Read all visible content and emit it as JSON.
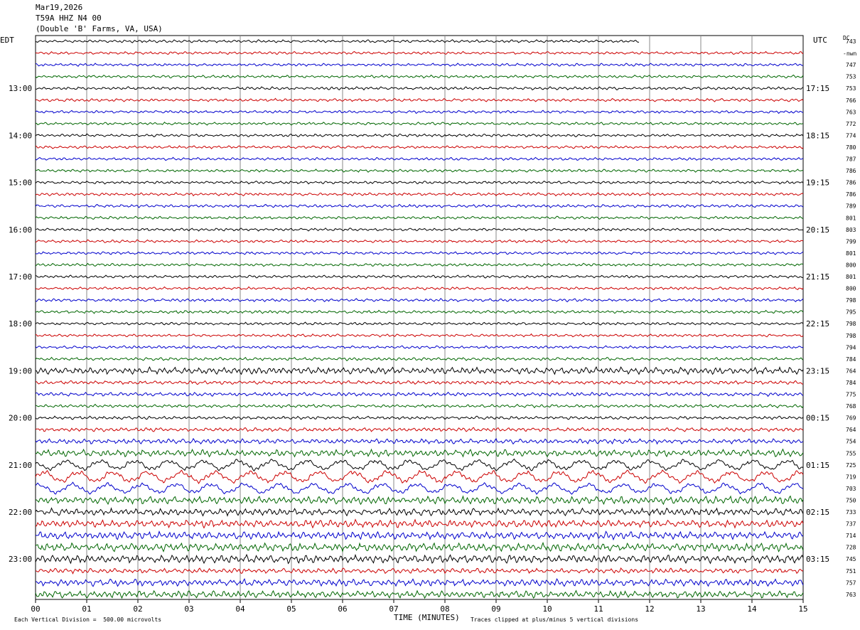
{
  "header": {
    "date": "Mar19,2026",
    "station": "T59A HHZ N4 00",
    "location": "(Double 'B' Farms, VA, USA)"
  },
  "labels": {
    "left_zone": "EDT",
    "right_zone": "UTC",
    "dc_header": "DC",
    "dc_sub": "-nwn",
    "xlabel": "TIME (MINUTES)",
    "scale_note": "Each Vertical Division =  500.00 microvolts",
    "clip_note": "Traces clipped at plus/minus 5 vertical divisions"
  },
  "chart_data": {
    "type": "line",
    "xlabel": "TIME (MINUTES)",
    "xlim": [
      0,
      15
    ],
    "x_ticks": [
      "00",
      "01",
      "02",
      "03",
      "04",
      "05",
      "06",
      "07",
      "08",
      "09",
      "10",
      "11",
      "12",
      "13",
      "14",
      "15"
    ],
    "trace_count": 48,
    "trace_colors": [
      "#000000",
      "#cc0000",
      "#0000cc",
      "#006600"
    ],
    "first_trace_end_minute": 11.8,
    "left_time_labels": [
      {
        "trace": 4,
        "label": "13:00"
      },
      {
        "trace": 8,
        "label": "14:00"
      },
      {
        "trace": 12,
        "label": "15:00"
      },
      {
        "trace": 16,
        "label": "16:00"
      },
      {
        "trace": 20,
        "label": "17:00"
      },
      {
        "trace": 24,
        "label": "18:00"
      },
      {
        "trace": 28,
        "label": "19:00"
      },
      {
        "trace": 32,
        "label": "20:00"
      },
      {
        "trace": 36,
        "label": "21:00"
      },
      {
        "trace": 40,
        "label": "22:00"
      },
      {
        "trace": 44,
        "label": "23:00"
      }
    ],
    "right_time_labels": [
      {
        "trace": 4,
        "label": "17:15"
      },
      {
        "trace": 8,
        "label": "18:15"
      },
      {
        "trace": 12,
        "label": "19:15"
      },
      {
        "trace": 16,
        "label": "20:15"
      },
      {
        "trace": 20,
        "label": "21:15"
      },
      {
        "trace": 24,
        "label": "22:15"
      },
      {
        "trace": 28,
        "label": "23:15"
      },
      {
        "trace": 32,
        "label": "00:15"
      },
      {
        "trace": 36,
        "label": "01:15"
      },
      {
        "trace": 40,
        "label": "02:15"
      },
      {
        "trace": 44,
        "label": "03:15"
      }
    ],
    "dc_values": [
      "743",
      "",
      "747",
      "753",
      "753",
      "766",
      "763",
      "772",
      "774",
      "780",
      "787",
      "786",
      "786",
      "786",
      "789",
      "801",
      "803",
      "799",
      "801",
      "800",
      "801",
      "800",
      "798",
      "795",
      "798",
      "798",
      "794",
      "784",
      "764",
      "784",
      "775",
      "768",
      "769",
      "764",
      "754",
      "755",
      "725",
      "719",
      "703",
      "750",
      "733",
      "737",
      "714",
      "728",
      "745",
      "751",
      "757",
      "763"
    ],
    "trace_amplitudes": [
      0.22,
      0.22,
      0.22,
      0.22,
      0.24,
      0.24,
      0.22,
      0.22,
      0.22,
      0.22,
      0.22,
      0.22,
      0.22,
      0.24,
      0.24,
      0.22,
      0.22,
      0.22,
      0.22,
      0.22,
      0.22,
      0.22,
      0.24,
      0.24,
      0.22,
      0.22,
      0.22,
      0.25,
      0.55,
      0.3,
      0.3,
      0.25,
      0.25,
      0.3,
      0.4,
      0.55,
      0.75,
      0.85,
      0.75,
      0.6,
      0.55,
      0.6,
      0.6,
      0.65,
      0.65,
      0.4,
      0.55,
      0.55
    ]
  }
}
